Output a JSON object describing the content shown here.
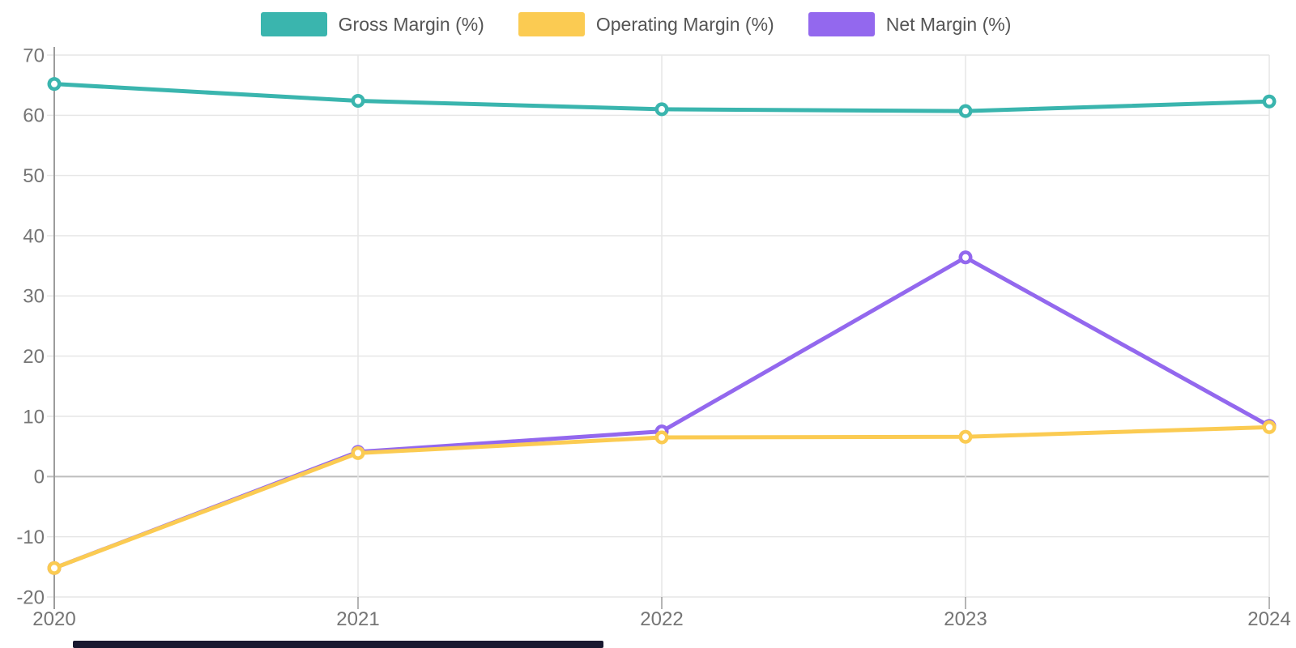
{
  "legend": [
    {
      "label": "Gross Margin (%)",
      "color": "#3AB5AE"
    },
    {
      "label": "Operating Margin (%)",
      "color": "#FBCB52"
    },
    {
      "label": "Net Margin (%)",
      "color": "#9368EE"
    }
  ],
  "chart_data": {
    "type": "line",
    "x": [
      "2020",
      "2021",
      "2022",
      "2023",
      "2024"
    ],
    "series": [
      {
        "name": "Gross Margin (%)",
        "color": "#3AB5AE",
        "values": [
          65.2,
          62.4,
          61.0,
          60.7,
          62.3
        ]
      },
      {
        "name": "Operating Margin (%)",
        "color": "#FBCB52",
        "values": [
          -15.2,
          3.9,
          6.5,
          6.6,
          8.2
        ]
      },
      {
        "name": "Net Margin (%)",
        "color": "#9368EE",
        "values": [
          -15.2,
          4.1,
          7.5,
          36.4,
          8.4
        ]
      }
    ],
    "title": "",
    "xlabel": "",
    "ylabel": "",
    "ylim": [
      -20,
      70
    ],
    "ytick_step": 10,
    "y_tick_labels": [
      "-20",
      "-10",
      "0",
      "10",
      "20",
      "30",
      "40",
      "50",
      "60",
      "70"
    ],
    "grid": true,
    "legend_position": "top"
  },
  "colors": {
    "grid": "#e6e6e6",
    "zero_line": "#bdbdbd",
    "axis_line": "#9c9c9c",
    "tick_text": "#757575",
    "background": "#ffffff",
    "scrollbar": "#191930"
  }
}
